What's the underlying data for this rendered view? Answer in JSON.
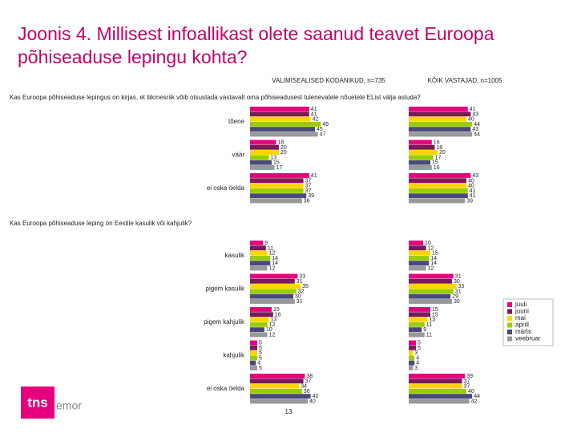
{
  "chart_data": {
    "type": "bar",
    "title": "Joonis 4. Millisest infoallikast olete saanud teavet Euroopa põhiseaduse lepingu kohta?",
    "columns": [
      "VALIMISEALISED KODANIKUD, n=735",
      "KÕIK VASTAJAD, n=1005"
    ],
    "series": [
      {
        "name": "juuli",
        "color": "#e6007e"
      },
      {
        "name": "juuni",
        "color": "#7a1a5e"
      },
      {
        "name": "mai",
        "color": "#ffd400"
      },
      {
        "name": "aprill",
        "color": "#9acd00"
      },
      {
        "name": "märts",
        "color": "#4a4a7a"
      },
      {
        "name": "veebruar",
        "color": "#999999"
      }
    ],
    "questions": [
      {
        "text": "Kas Euroopa põhiseaduse lepingus on kirjas, et liikmesriik võib otsustada vastavalt oma põhiseadusest tulenevatele nõuetele EList välja astuda?",
        "categories": [
          "tõene",
          "väär",
          "ei oska öelda"
        ],
        "values": [
          [
            [
              41,
              41,
              42,
              49,
              45,
              47
            ],
            [
              18,
              20,
              20,
              13,
              15,
              17
            ],
            [
              41,
              37,
              37,
              37,
              39,
              36
            ]
          ],
          [
            [
              41,
              43,
              40,
              44,
              43,
              44
            ],
            [
              16,
              18,
              20,
              17,
              15,
              16
            ],
            [
              43,
              40,
              40,
              41,
              41,
              39
            ]
          ]
        ]
      },
      {
        "text": "Kas Euroopa põhiseaduse leping on Eestile kasulik või kahjulik?",
        "categories": [
          "kasulik",
          "pigem kasulik",
          "pigem kahjulik",
          "kahjulik",
          "ei oska öelda"
        ],
        "values": [
          [
            [
              9,
              11,
              12,
              14,
              14,
              12
            ],
            [
              33,
              31,
              35,
              32,
              30,
              31
            ],
            [
              15,
              16,
              13,
              12,
              10,
              12
            ],
            [
              5,
              5,
              5,
              5,
              4,
              5
            ],
            [
              38,
              37,
              34,
              36,
              42,
              40
            ]
          ],
          [
            [
              10,
              12,
              15,
              14,
              14,
              12
            ],
            [
              31,
              30,
              33,
              31,
              29,
              30
            ],
            [
              15,
              15,
              13,
              11,
              9,
              11
            ],
            [
              5,
              5,
              3,
              4,
              4,
              3
            ],
            [
              39,
              37,
              37,
              40,
              44,
              42
            ]
          ]
        ]
      }
    ],
    "page_number": "13",
    "logo": {
      "mark": "tns",
      "text": "emor"
    }
  }
}
